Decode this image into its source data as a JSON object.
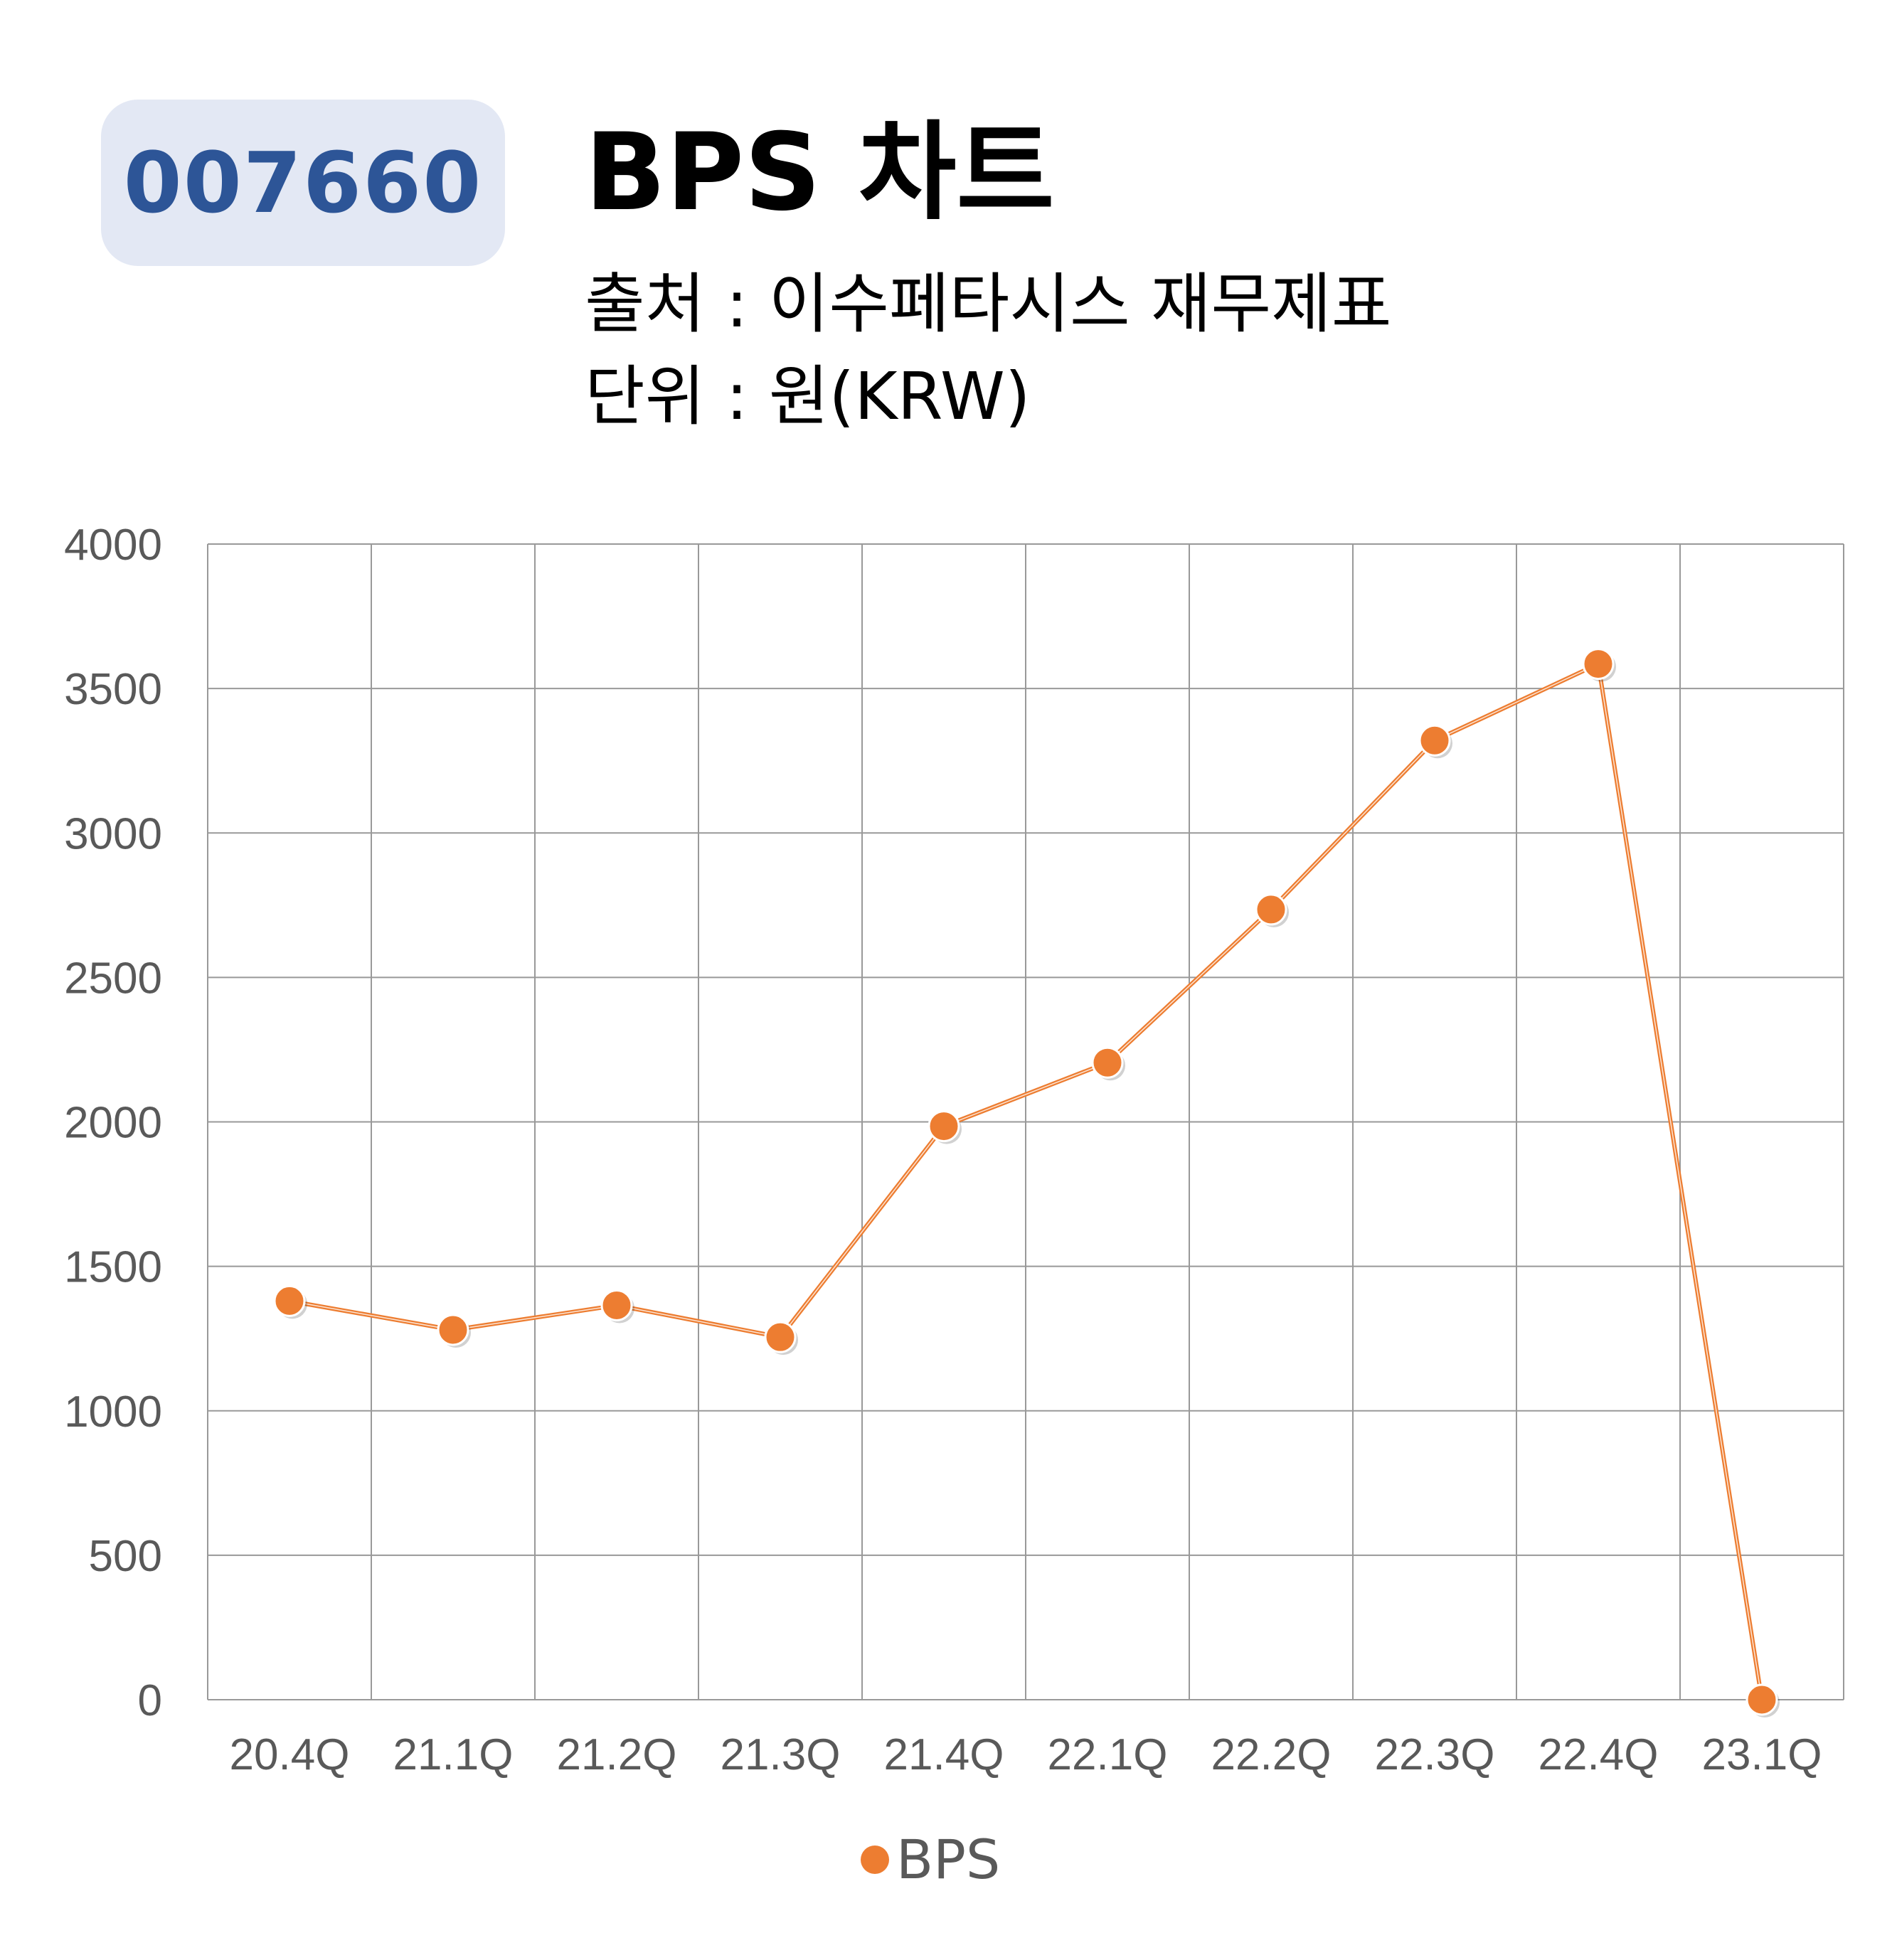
{
  "badge": {
    "code": "007660"
  },
  "title": "BPS 차트",
  "source_line": "출처 : 이수페타시스 재무제표",
  "unit_line": "단위 : 원(KRW)",
  "colors": {
    "line": "#ed7d31",
    "badge_bg": "#e3e8f4",
    "badge_text": "#2d5597",
    "grid": "#999999"
  },
  "chart_data": {
    "type": "line",
    "categories": [
      "20.4Q",
      "21.1Q",
      "21.2Q",
      "21.3Q",
      "21.4Q",
      "22.1Q",
      "22.2Q",
      "22.3Q",
      "22.4Q",
      "23.1Q"
    ],
    "series": [
      {
        "name": "BPS",
        "values": [
          1380,
          1280,
          1365,
          1255,
          1985,
          2205,
          2735,
          3320,
          3585,
          0
        ]
      }
    ],
    "yticks": [
      "0",
      "500",
      "1000",
      "1500",
      "2000",
      "2500",
      "3000",
      "3500",
      "4000"
    ],
    "ylim": [
      0,
      4000
    ],
    "grid": true,
    "legend": "bottom"
  }
}
